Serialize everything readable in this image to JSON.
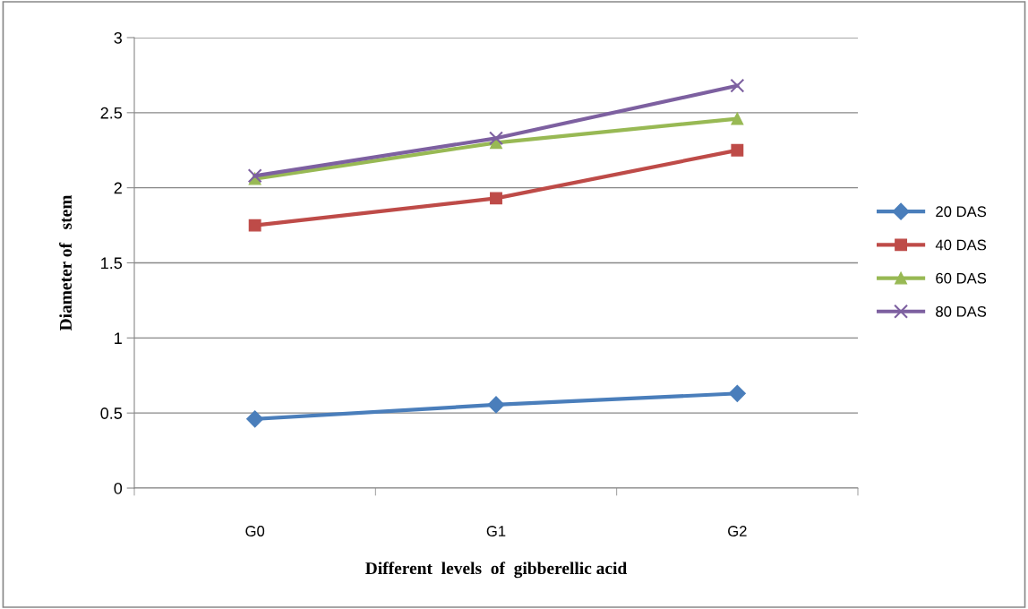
{
  "chart_data": {
    "type": "line",
    "xlabel": "Different  levels  of  gibberellic acid",
    "ylabel": "Diameter of   stem",
    "categories": [
      "G0",
      "G1",
      "G2"
    ],
    "series": [
      {
        "name": "20 DAS",
        "color": "#4a7ebb",
        "marker": "diamond",
        "values": [
          0.46,
          0.555,
          0.63
        ]
      },
      {
        "name": "40 DAS",
        "color": "#be4b48",
        "marker": "square",
        "values": [
          1.75,
          1.93,
          2.25
        ]
      },
      {
        "name": "60 DAS",
        "color": "#98b954",
        "marker": "triangle",
        "values": [
          2.06,
          2.3,
          2.46
        ]
      },
      {
        "name": "80 DAS",
        "color": "#7d60a0",
        "marker": "cross",
        "values": [
          2.08,
          2.33,
          2.68
        ]
      }
    ],
    "ylim": [
      0,
      3
    ],
    "yticks": [
      0,
      0.5,
      1,
      1.5,
      2,
      2.5,
      3
    ],
    "grid": "y",
    "legend": "right",
    "line_style": "solid"
  }
}
